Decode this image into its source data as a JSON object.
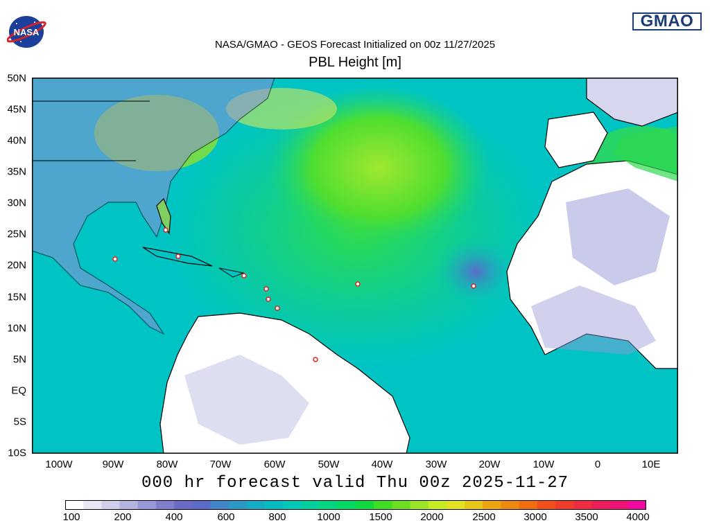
{
  "header": {
    "title": "NASA/GMAO - GEOS Forecast Initialized on 00z 11/27/2025",
    "subtitle": "PBL Height [m]",
    "nasa_logo_text": "NASA",
    "gmao_logo_text": "GMAO"
  },
  "map": {
    "lat_labels": [
      "50N",
      "45N",
      "40N",
      "35N",
      "30N",
      "25N",
      "20N",
      "15N",
      "10N",
      "5N",
      "EQ",
      "5S",
      "10S"
    ],
    "lon_labels": [
      "100W",
      "90W",
      "80W",
      "70W",
      "60W",
      "50W",
      "40W",
      "30W",
      "20W",
      "10W",
      "0",
      "10E"
    ],
    "lon_range": [
      -105,
      15
    ],
    "lat_range": [
      -10,
      50
    ],
    "colors": {
      "land_dry": "#ffffff",
      "ocean_mid": "#00c4c4",
      "ocean_high": "#1fd86a",
      "highlight": "#a0e830",
      "border": "#000000"
    }
  },
  "footer": {
    "forecast_valid": "000 hr forecast valid Thu 00z 2025-11-27"
  },
  "colorbar": {
    "labels": [
      "100",
      "200",
      "400",
      "600",
      "800",
      "1000",
      "1500",
      "2000",
      "2500",
      "3000",
      "3500",
      "4000"
    ],
    "colors": [
      "#ffffff",
      "#e8e8f4",
      "#cfcfe9",
      "#b4b4df",
      "#9898d6",
      "#7f7fcc",
      "#6b6bc4",
      "#5a6cc8",
      "#3f86c8",
      "#2a9ac4",
      "#13acc4",
      "#06bcc0",
      "#00c8b8",
      "#00d09c",
      "#00d680",
      "#00d864",
      "#10da40",
      "#3ede20",
      "#6ce020",
      "#9ae624",
      "#c8ea22",
      "#e4e220",
      "#e8c618",
      "#eca410",
      "#ee8a10",
      "#f06e10",
      "#f25018",
      "#f23c2a",
      "#f02c44",
      "#ee1e5c",
      "#ee1276",
      "#f008a0"
    ]
  }
}
